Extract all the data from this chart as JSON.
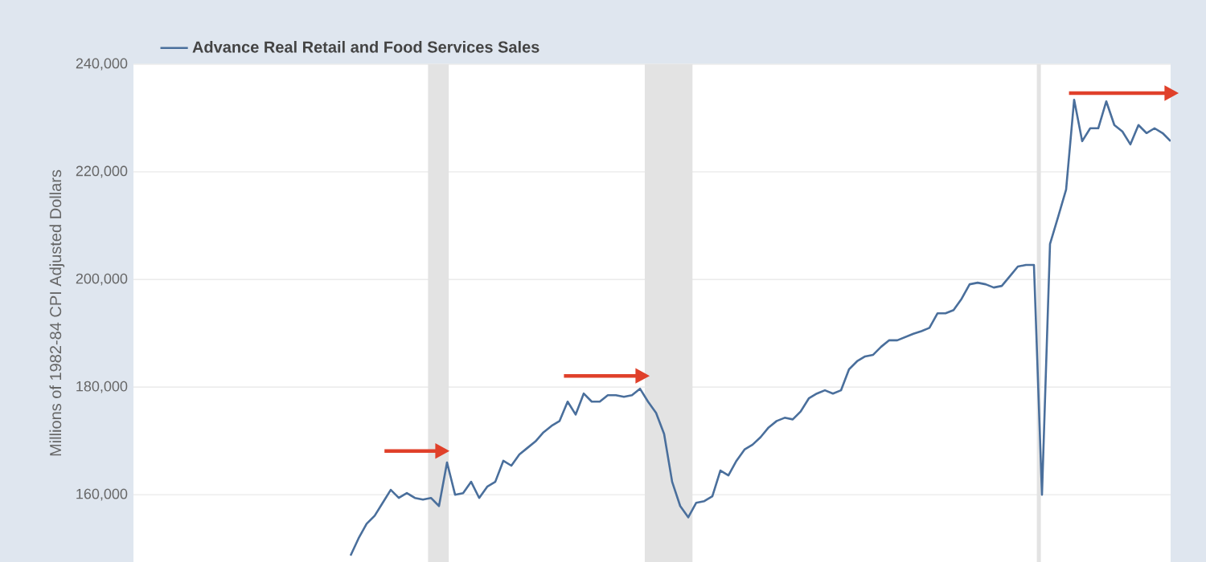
{
  "chart_data": {
    "type": "line",
    "ylabel": "Millions of 1982-84 CPI Adjusted Dollars",
    "categories": [
      null,
      null,
      null,
      null,
      null,
      null,
      null,
      null,
      null,
      null,
      null,
      null,
      null,
      null,
      null,
      null,
      null,
      null,
      null,
      null,
      null,
      null,
      null,
      null,
      null,
      null,
      null,
      null,
      null,
      null,
      null,
      null,
      null,
      null,
      null,
      null,
      null,
      null,
      null,
      null,
      null,
      null,
      null,
      null,
      null,
      null,
      null,
      null,
      null,
      null,
      null,
      null,
      null,
      null,
      null,
      null,
      null,
      null,
      null,
      null,
      null,
      null,
      null,
      null,
      null,
      null,
      null,
      null,
      null,
      null,
      null,
      null,
      null,
      null,
      null,
      null,
      null,
      null,
      null,
      null,
      null,
      null,
      null,
      null,
      null,
      null,
      null,
      null,
      null,
      null,
      null,
      null,
      null,
      null,
      null,
      null,
      null,
      null,
      null,
      null,
      null,
      null,
      null,
      null,
      null,
      null,
      null,
      null,
      null,
      null,
      null,
      null,
      null,
      null,
      null,
      null,
      null,
      null,
      null,
      null,
      null,
      null,
      null,
      null,
      null,
      null,
      null,
      null,
      null,
      null
    ],
    "series": [
      {
        "name": "Advance Real Retail and Food Services Sales",
        "color": "#4a6f9c",
        "values": [
          null,
          null,
          null,
          null,
          null,
          null,
          null,
          null,
          null,
          null,
          null,
          null,
          null,
          null,
          null,
          null,
          null,
          null,
          null,
          null,
          null,
          null,
          null,
          null,
          null,
          null,
          null,
          148700,
          151900,
          154600,
          156100,
          158500,
          160900,
          159400,
          160300,
          159400,
          159100,
          159400,
          157900,
          166000,
          160000,
          160300,
          162400,
          159400,
          161500,
          162400,
          166300,
          165400,
          167500,
          168700,
          169900,
          171600,
          172800,
          173700,
          177300,
          174900,
          178800,
          177300,
          177300,
          178500,
          178500,
          178200,
          178500,
          179700,
          177300,
          175200,
          171300,
          162400,
          157900,
          155800,
          158500,
          158800,
          159700,
          164500,
          163600,
          166300,
          168400,
          169300,
          170700,
          172500,
          173700,
          174300,
          174000,
          175500,
          177900,
          178800,
          179400,
          178800,
          179400,
          183300,
          184800,
          185700,
          186000,
          187500,
          188700,
          188700,
          189300,
          189900,
          190400,
          191000,
          193700,
          193700,
          194300,
          196400,
          199100,
          199400,
          199100,
          198500,
          198800,
          200600,
          202400,
          202700,
          202700,
          160000,
          206600,
          211600,
          216700,
          233400,
          225700,
          228100,
          228100,
          233100,
          228700,
          227500,
          225100,
          228700,
          227200,
          228100,
          227200,
          225700
        ]
      }
    ],
    "ylim": [
      147500,
      240000
    ],
    "yticks": [
      {
        "value": 160000,
        "label": "160,000"
      },
      {
        "value": 180000,
        "label": "180,000"
      },
      {
        "value": 200000,
        "label": "200,000"
      },
      {
        "value": 220000,
        "label": "220,000"
      },
      {
        "value": 240000,
        "label": "240,000"
      }
    ],
    "grid": "y",
    "legend": "top left",
    "marker": "none",
    "line_style": "solid",
    "tick_labels": "y"
  }
}
